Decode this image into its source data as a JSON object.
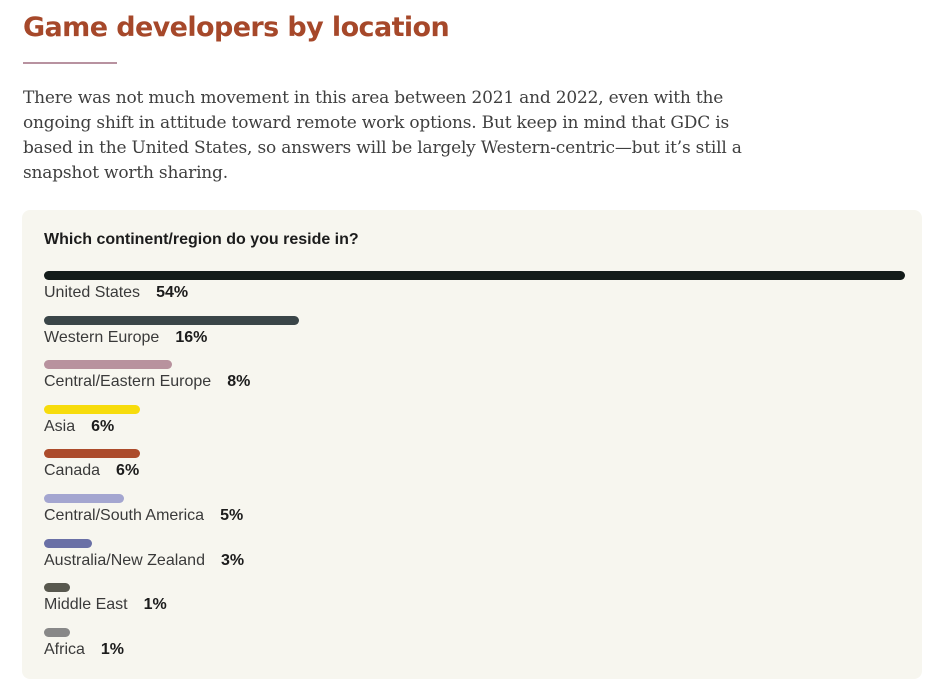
{
  "header": {
    "title": "Game developers by location",
    "intro": "There was not much movement in this area between 2021 and 2022, even with the ongoing shift in attitude toward remote work options. But keep in mind that GDC is based in the United States, so answers will be largely Western-centric—but it’s still a snapshot worth sharing."
  },
  "chart_data": {
    "type": "bar",
    "orientation": "horizontal",
    "title": "Which continent/region do you reside in?",
    "categories": [
      "United States",
      "Western Europe",
      "Central/Eastern Europe",
      "Asia",
      "Canada",
      "Central/South America",
      "Australia/New Zealand",
      "Middle East",
      "Africa"
    ],
    "values": [
      54,
      16,
      8,
      6,
      6,
      5,
      3,
      1,
      1
    ],
    "value_labels": [
      "54%",
      "16%",
      "8%",
      "6%",
      "6%",
      "5%",
      "3%",
      "1%",
      "1%"
    ],
    "colors": [
      "#141c1a",
      "#3a4548",
      "#b8929e",
      "#f7dc0c",
      "#ac4b2b",
      "#a4a6d0",
      "#6a70a6",
      "#58584e",
      "#888888"
    ],
    "xlim": [
      0,
      54
    ],
    "grid": false,
    "legend": "none"
  }
}
